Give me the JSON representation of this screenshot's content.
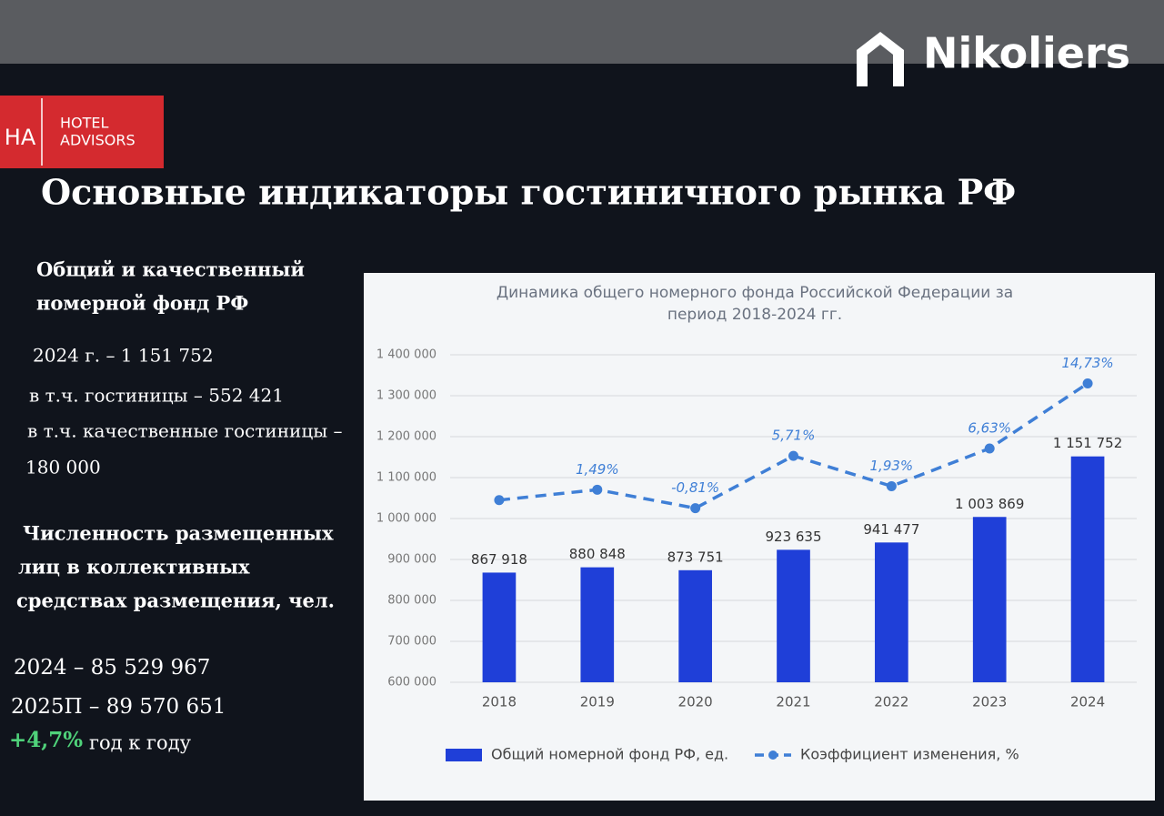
{
  "logos": {
    "hotel_advisors_mark": "HA",
    "hotel_advisors": [
      "HOTEL",
      "ADVISORS"
    ],
    "nikoliers": "Nikoliers"
  },
  "title": "Основные индикаторы гостиничного рынка РФ",
  "left_panel": {
    "heading1": [
      "Общий и качественный",
      "номерной фонд РФ"
    ],
    "lines1": [
      "2024 г. – 1 151 752",
      "в т.ч. гостиницы – 552 421",
      "в т.ч. качественные гостиницы –",
      "180 000"
    ],
    "heading2": [
      "Численность размещенных",
      "лиц в коллективных",
      "средствах размещения, чел."
    ],
    "lines2": [
      "2024   – 85 529 967",
      "2025П – 89 570 651"
    ],
    "growth": "+4,7%",
    "growth_note": "год к году"
  },
  "chart_data": {
    "type": "bar",
    "title": [
      "Динамика общего номерного фонда Российской Федерации за",
      "период 2018-2024 гг."
    ],
    "categories": [
      "2018",
      "2019",
      "2020",
      "2021",
      "2022",
      "2023",
      "2024"
    ],
    "series": [
      {
        "name": "Общий номерной фонд РФ, ед.",
        "type": "bar",
        "color": "#1f3fd8",
        "values": [
          867918,
          880848,
          873751,
          923635,
          941477,
          1003869,
          1151752
        ],
        "value_labels": [
          "867 918",
          "880 848",
          "873 751",
          "923 635",
          "941 477",
          "1 003 869",
          "1 151 752"
        ]
      },
      {
        "name": "Коэффициент изменения, %",
        "type": "line",
        "axis": "y2",
        "color": "#3f7fd6",
        "values": [
          0.2,
          1.49,
          -0.81,
          5.71,
          1.93,
          6.63,
          14.73
        ],
        "value_labels": [
          null,
          "1,49%",
          "-0,81%",
          "5,71%",
          "1,93%",
          "6,63%",
          "14,73%"
        ]
      }
    ],
    "ylim": [
      600000,
      1400000
    ],
    "yticks": [
      {
        "value": 600000,
        "label": "600 000"
      },
      {
        "value": 700000,
        "label": "700 000"
      },
      {
        "value": 800000,
        "label": "800 000"
      },
      {
        "value": 900000,
        "label": "900 000"
      },
      {
        "value": 1000000,
        "label": "1 000 000"
      },
      {
        "value": 1100000,
        "label": "1 100 000"
      },
      {
        "value": 1200000,
        "label": "1 200 000"
      },
      {
        "value": 1300000,
        "label": "1 300 000"
      },
      {
        "value": 1400000,
        "label": "1 400 000"
      }
    ],
    "y2lim": [
      -22.5,
      18.3
    ],
    "grid": true,
    "legend": "bottom"
  }
}
